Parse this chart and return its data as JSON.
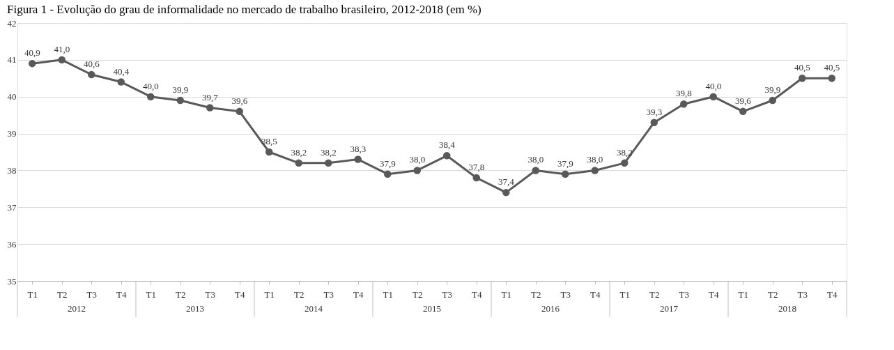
{
  "chart_data": {
    "type": "line",
    "title": "Figura 1 - Evolução do grau de informalidade no mercado de trabalho brasileiro, 2012-2018 (em %)",
    "categories": [
      "T1",
      "T2",
      "T3",
      "T4",
      "T1",
      "T2",
      "T3",
      "T4",
      "T1",
      "T2",
      "T3",
      "T4",
      "T1",
      "T2",
      "T3",
      "T4",
      "T1",
      "T2",
      "T3",
      "T4",
      "T1",
      "T2",
      "T3",
      "T4",
      "T1",
      "T2",
      "T3",
      "T4"
    ],
    "series": [
      {
        "color": "#595959",
        "values": [
          40.9,
          41.0,
          40.6,
          40.4,
          40.0,
          39.9,
          39.7,
          39.6,
          38.5,
          38.2,
          38.2,
          38.3,
          37.9,
          38.0,
          38.4,
          37.8,
          37.4,
          38.0,
          37.9,
          38.0,
          38.2,
          39.3,
          39.8,
          40.0,
          39.6,
          39.9,
          40.5,
          40.5
        ],
        "value_labels": [
          "40,9",
          "41,0",
          "40,6",
          "40,4",
          "40,0",
          "39,9",
          "39,7",
          "39,6",
          "38,5",
          "38,2",
          "38,2",
          "38,3",
          "37,9",
          "38,0",
          "38,4",
          "37,8",
          "37,4",
          "38,0",
          "37,9",
          "38,0",
          "38,2",
          "39,3",
          "39,8",
          "40,0",
          "39,6",
          "39,9",
          "40,5",
          "40,5"
        ]
      }
    ],
    "annotations": [
      "2012",
      "2013",
      "2014",
      "2015",
      "2016",
      "2017",
      "2018"
    ],
    "ylim": [
      35,
      42
    ],
    "yticks": [
      35,
      36,
      37,
      38,
      39,
      40,
      41,
      42
    ],
    "grid": "y",
    "marker": "circle",
    "line_style": "solid"
  }
}
